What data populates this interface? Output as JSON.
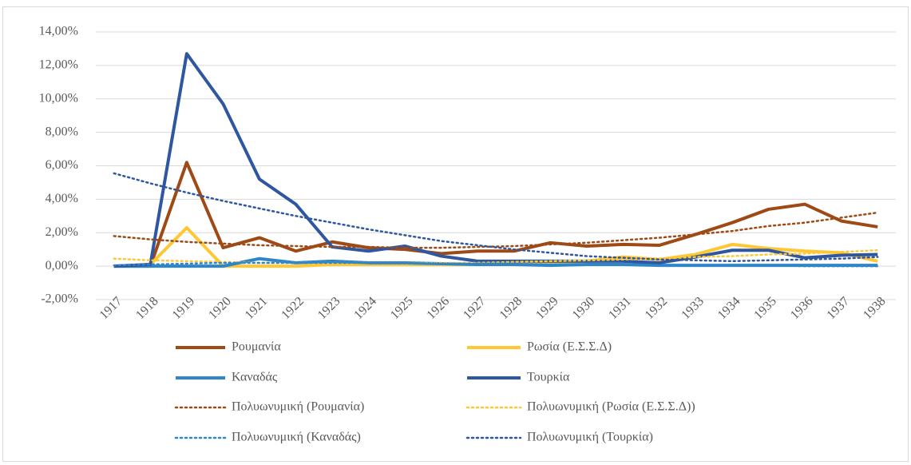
{
  "chart_data": {
    "type": "line",
    "categories": [
      "1917",
      "1918",
      "1919",
      "1920",
      "1921",
      "1922",
      "1923",
      "1924",
      "1925",
      "1926",
      "1927",
      "1928",
      "1929",
      "1930",
      "1931",
      "1932",
      "1933",
      "1934",
      "1935",
      "1936",
      "1937",
      "1938"
    ],
    "ylim": [
      -2,
      14
    ],
    "yticks": [
      {
        "value": -2,
        "label": "-2,00%"
      },
      {
        "value": 0,
        "label": "0,00%"
      },
      {
        "value": 2,
        "label": "2,00%"
      },
      {
        "value": 4,
        "label": "4,00%"
      },
      {
        "value": 6,
        "label": "6,00%"
      },
      {
        "value": 8,
        "label": "8,00%"
      },
      {
        "value": 10,
        "label": "10,00%"
      },
      {
        "value": 12,
        "label": "12,00%"
      },
      {
        "value": 14,
        "label": "14,00%"
      }
    ],
    "grid": true,
    "legend": "bottom",
    "series": [
      {
        "name": "Ρουμανία",
        "color": "#9e4a16",
        "style": "solid",
        "values": [
          0,
          0,
          6.2,
          1.1,
          1.7,
          0.9,
          1.45,
          1.1,
          1.0,
          0.75,
          0.9,
          0.9,
          1.4,
          1.2,
          1.3,
          1.25,
          1.9,
          2.6,
          3.4,
          3.7,
          2.7,
          2.35
        ]
      },
      {
        "name": "Ρωσία (Ε.Σ.Σ.Δ)",
        "color": "#ffc733",
        "style": "solid",
        "values": [
          0,
          0.1,
          2.3,
          0,
          0,
          0,
          0.1,
          0.1,
          0.1,
          0.1,
          0.1,
          0.2,
          0.2,
          0.3,
          0.55,
          0.4,
          0.7,
          1.3,
          1.05,
          0.9,
          0.8,
          0.3
        ]
      },
      {
        "name": "Καναδάς",
        "color": "#2e86c8",
        "style": "solid",
        "values": [
          0,
          0,
          0,
          0,
          0.45,
          0.2,
          0.3,
          0.2,
          0.2,
          0.15,
          0.1,
          0.1,
          0.05,
          0.1,
          0.1,
          0.05,
          0.05,
          0.05,
          0.05,
          0.05,
          0.05,
          0.05
        ]
      },
      {
        "name": "Τουρκία",
        "color": "#2f57a0",
        "style": "solid",
        "values": [
          0,
          0.1,
          12.7,
          9.7,
          5.2,
          3.7,
          1.15,
          0.9,
          1.2,
          0.6,
          0.3,
          0.3,
          0.3,
          0.3,
          0.3,
          0.2,
          0.55,
          0.95,
          0.95,
          0.5,
          0.65,
          0.7
        ]
      },
      {
        "name": "Πολυωνυμική (Ρουμανία)",
        "color": "#9e4a16",
        "style": "dotted",
        "values": [
          1.8,
          1.6,
          1.45,
          1.35,
          1.25,
          1.2,
          1.15,
          1.15,
          1.1,
          1.1,
          1.15,
          1.2,
          1.3,
          1.4,
          1.55,
          1.7,
          1.9,
          2.1,
          2.4,
          2.6,
          2.9,
          3.2
        ]
      },
      {
        "name": "Πολυωνυμική (Ρωσία (Ε.Σ.Σ.Δ))",
        "color": "#ffc733",
        "style": "dotted",
        "values": [
          0.45,
          0.35,
          0.3,
          0.25,
          0.2,
          0.2,
          0.2,
          0.2,
          0.2,
          0.2,
          0.2,
          0.25,
          0.3,
          0.35,
          0.4,
          0.45,
          0.55,
          0.6,
          0.7,
          0.75,
          0.85,
          0.95
        ]
      },
      {
        "name": "Πολυωνυμική (Καναδάς)",
        "color": "#2e86c8",
        "style": "dotted",
        "values": [
          0.05,
          0.1,
          0.15,
          0.2,
          0.2,
          0.2,
          0.2,
          0.2,
          0.2,
          0.15,
          0.15,
          0.15,
          0.1,
          0.1,
          0.1,
          0.05,
          0.05,
          0.05,
          0.05,
          0,
          0,
          0
        ]
      },
      {
        "name": "Πολυωνυμική (Τουρκία)",
        "color": "#2f57a0",
        "style": "dotted",
        "values": [
          5.55,
          4.95,
          4.4,
          3.9,
          3.45,
          3.0,
          2.6,
          2.2,
          1.85,
          1.5,
          1.25,
          1.0,
          0.8,
          0.6,
          0.5,
          0.4,
          0.35,
          0.3,
          0.35,
          0.4,
          0.45,
          0.55
        ]
      }
    ]
  }
}
